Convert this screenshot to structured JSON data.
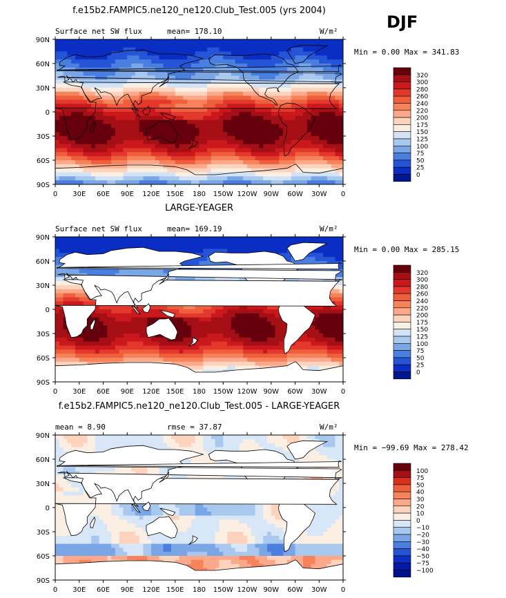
{
  "season_label": "DJF",
  "panels": [
    {
      "title": "f.e15b2.FAMPIC5.ne120_ne120.Club_Test.005 (yrs 2004)",
      "left_label": "Surface net SW flux",
      "stat_text": "mean= 178.10",
      "units": "W/m²",
      "minmax": "Min =   0.00 Max = 341.83",
      "colorbar_labels": [
        "320",
        "300",
        "280",
        "260",
        "240",
        "220",
        "200",
        "175",
        "150",
        "125",
        "100",
        "75",
        "50",
        "25",
        "0"
      ],
      "colors": [
        "#67000d",
        "#a50f15",
        "#cb181d",
        "#e2392c",
        "#ef5f3c",
        "#f6835c",
        "#fba98a",
        "#fdd3bd",
        "#fbeee2",
        "#d3e3f5",
        "#a9c8ee",
        "#7aa6e6",
        "#4a7fe0",
        "#2555d6",
        "#0a2ec4",
        "#00178f"
      ],
      "tag": "model"
    },
    {
      "title": "LARGE-YEAGER",
      "left_label": "Surface net SW flux",
      "stat_text": "mean= 169.19",
      "units": "W/m²",
      "minmax": "Min =   0.00 Max = 285.15",
      "colorbar_labels": [
        "320",
        "300",
        "280",
        "260",
        "240",
        "220",
        "200",
        "175",
        "150",
        "125",
        "100",
        "75",
        "50",
        "25",
        "0"
      ],
      "colors": [
        "#67000d",
        "#a50f15",
        "#cb181d",
        "#e2392c",
        "#ef5f3c",
        "#f6835c",
        "#fba98a",
        "#fdd3bd",
        "#fbeee2",
        "#d3e3f5",
        "#a9c8ee",
        "#7aa6e6",
        "#4a7fe0",
        "#2555d6",
        "#0a2ec4",
        "#00178f"
      ],
      "tag": "obs"
    },
    {
      "title": "f.e15b2.FAMPIC5.ne120_ne120.Club_Test.005 - LARGE-YEAGER",
      "left_label": "mean =   8.90",
      "stat_text": "rmse =  37.87",
      "units": "W/m²",
      "minmax": "Min = −99.69 Max = 278.42",
      "colorbar_labels": [
        "100",
        "75",
        "50",
        "40",
        "30",
        "20",
        "10",
        "0",
        "−10",
        "−20",
        "−30",
        "−40",
        "−50",
        "−75",
        "−100"
      ],
      "colors": [
        "#67000d",
        "#a50f15",
        "#d9301e",
        "#ef5f3c",
        "#f6835c",
        "#fba98a",
        "#fdd3bd",
        "#fbeee2",
        "#d8e7f8",
        "#a9c8ee",
        "#7aa6e6",
        "#4a7fe0",
        "#2555d6",
        "#0a2ec4",
        "#0519a6",
        "#00118c"
      ],
      "tag": "diff"
    }
  ],
  "lat_labels": [
    "90N",
    "60N",
    "30N",
    "0",
    "30S",
    "60S",
    "90S"
  ],
  "lon_labels": [
    "0",
    "30E",
    "60E",
    "90E",
    "120E",
    "150E",
    "180",
    "150W",
    "120W",
    "90W",
    "60W",
    "30W",
    "0"
  ],
  "chart_data": [
    {
      "type": "heatmap",
      "title": "f.e15b2.FAMPIC5.ne120_ne120.Club_Test.005 (yrs 2004)",
      "variable": "Surface net SW flux",
      "units": "W/m²",
      "mean": 178.1,
      "min": 0.0,
      "max": 341.83,
      "levels": [
        0,
        25,
        50,
        75,
        100,
        125,
        150,
        175,
        200,
        220,
        240,
        260,
        280,
        300,
        320
      ]
    },
    {
      "type": "heatmap",
      "title": "LARGE-YEAGER",
      "variable": "Surface net SW flux",
      "units": "W/m²",
      "mean": 169.19,
      "min": 0.0,
      "max": 285.15,
      "levels": [
        0,
        25,
        50,
        75,
        100,
        125,
        150,
        175,
        200,
        220,
        240,
        260,
        280,
        300,
        320
      ]
    },
    {
      "type": "heatmap",
      "title": "f.e15b2.FAMPIC5.ne120_ne120.Club_Test.005 - LARGE-YEAGER",
      "units": "W/m²",
      "mean": 8.9,
      "rmse": 37.87,
      "min": -99.69,
      "max": 278.42,
      "levels": [
        -100,
        -75,
        -50,
        -40,
        -30,
        -20,
        -10,
        0,
        10,
        20,
        30,
        40,
        50,
        75,
        100
      ]
    }
  ]
}
